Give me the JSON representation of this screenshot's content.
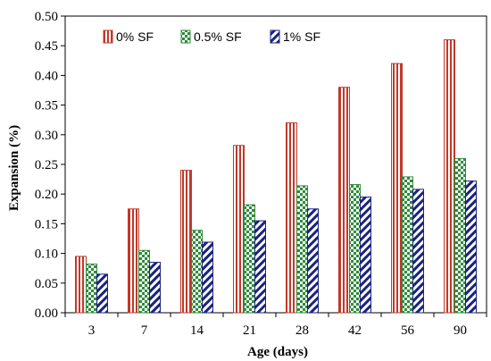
{
  "chart_data": {
    "type": "bar",
    "title": "",
    "xlabel": "Age (days)",
    "ylabel": "Expansion (%)",
    "categories": [
      "3",
      "7",
      "14",
      "21",
      "28",
      "42",
      "56",
      "90"
    ],
    "ylim": [
      0,
      0.5
    ],
    "yticks": [
      "0.00",
      "0.05",
      "0.10",
      "0.15",
      "0.20",
      "0.25",
      "0.30",
      "0.35",
      "0.40",
      "0.45",
      "0.50"
    ],
    "grid": false,
    "legend_position": "top",
    "series": [
      {
        "name": "0% SF",
        "pattern": "vertical-stripes",
        "color": "#c0392b",
        "values": [
          0.095,
          0.175,
          0.24,
          0.282,
          0.32,
          0.38,
          0.42,
          0.46
        ]
      },
      {
        "name": "0.5% SF",
        "pattern": "checker",
        "color": "#2e8b3a",
        "values": [
          0.082,
          0.105,
          0.139,
          0.182,
          0.214,
          0.216,
          0.229,
          0.26
        ]
      },
      {
        "name": "1% SF",
        "pattern": "diagonal-stripes",
        "color": "#1a237e",
        "values": [
          0.065,
          0.085,
          0.119,
          0.155,
          0.175,
          0.195,
          0.208,
          0.222
        ]
      }
    ]
  }
}
